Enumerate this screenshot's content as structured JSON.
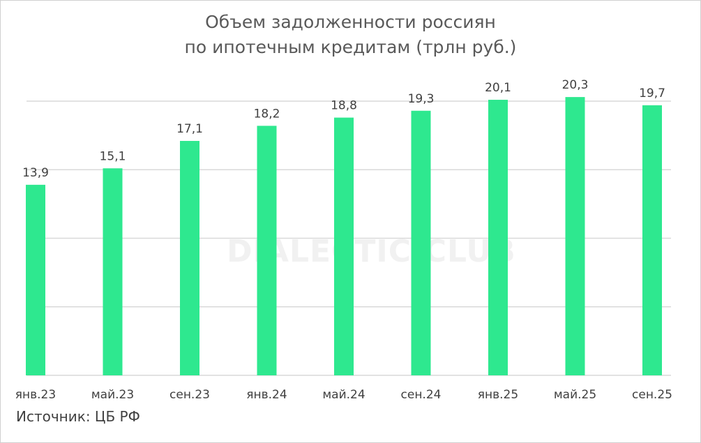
{
  "chart_data": {
    "type": "bar",
    "title_lines": [
      "Объем задолженности россиян",
      "по ипотечным кредитам (трлн руб.)"
    ],
    "categories": [
      "янв.23",
      "май.23",
      "сен.23",
      "янв.24",
      "май.24",
      "сен.24",
      "янв.25",
      "май.25",
      "сен.25"
    ],
    "values": [
      13.9,
      15.1,
      17.1,
      18.2,
      18.8,
      19.3,
      20.1,
      20.3,
      19.7
    ],
    "value_labels": [
      "13,9",
      "15,1",
      "17,1",
      "18,2",
      "18,8",
      "19,3",
      "20,1",
      "20,3",
      "19,7"
    ],
    "ylim": [
      0,
      20
    ],
    "grid": true,
    "bar_color": "#2ee88f",
    "grid_color": "#d9d9d9"
  },
  "source": "Источник: ЦБ РФ",
  "watermark": "DIALECTIC.CLUB"
}
